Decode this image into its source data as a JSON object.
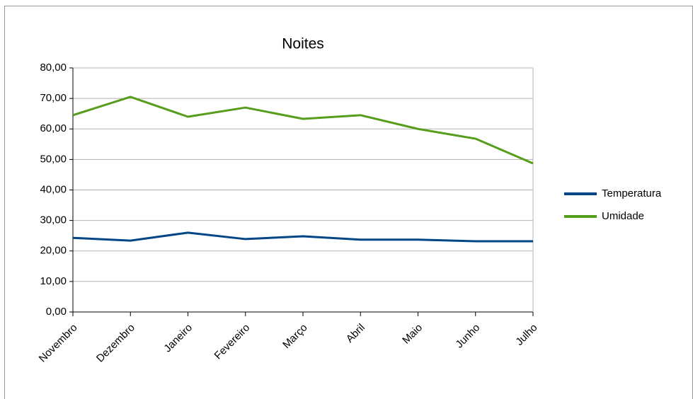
{
  "chart_data": {
    "type": "line",
    "title": "Noites",
    "categories": [
      "Novembro",
      "Dezembro",
      "Janeiro",
      "Fevereiro",
      "Março",
      "Abril",
      "Maio",
      "Junho",
      "Julho"
    ],
    "series": [
      {
        "name": "Temperatura",
        "color": "#004586",
        "values": [
          24.3,
          23.4,
          26.0,
          23.9,
          24.8,
          23.7,
          23.7,
          23.2,
          23.2
        ]
      },
      {
        "name": "Umidade",
        "color": "#579d1c",
        "values": [
          64.5,
          70.5,
          64.0,
          67.0,
          63.3,
          64.5,
          60.0,
          56.8,
          48.7
        ]
      }
    ],
    "ylim": [
      0,
      80
    ],
    "yticks": [
      {
        "value": 0,
        "label": "0,00"
      },
      {
        "value": 10,
        "label": "10,00"
      },
      {
        "value": 20,
        "label": "20,00"
      },
      {
        "value": 30,
        "label": "30,00"
      },
      {
        "value": 40,
        "label": "40,00"
      },
      {
        "value": 50,
        "label": "50,00"
      },
      {
        "value": 60,
        "label": "60,00"
      },
      {
        "value": 70,
        "label": "70,00"
      },
      {
        "value": 80,
        "label": "80,00"
      }
    ],
    "grid": true,
    "legend": "right"
  }
}
